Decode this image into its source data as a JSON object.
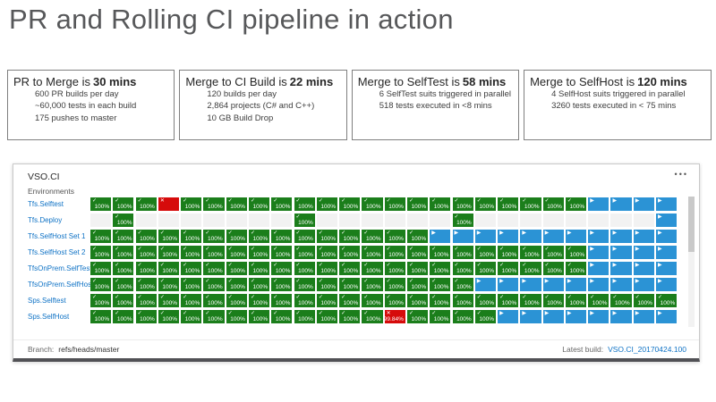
{
  "page": {
    "title": "PR and Rolling CI pipeline in action"
  },
  "stats": [
    {
      "heading_prefix": "PR to Merge is",
      "heading_bold": "30 mins",
      "lines": [
        "600 PR builds per day",
        "~60,000 tests in each build",
        "175 pushes to master"
      ]
    },
    {
      "heading_prefix": "Merge to CI Build is",
      "heading_bold": "22 mins",
      "lines": [
        "120 builds per day",
        "2,864 projects (C# and C++)",
        "10 GB Build Drop"
      ]
    },
    {
      "heading_prefix": "Merge to SelfTest is",
      "heading_bold": "58 mins",
      "lines": [
        "6 SelfTest suits triggered in parallel",
        "518 tests executed in <8 mins"
      ]
    },
    {
      "heading_prefix": "Merge to SelfHost is",
      "heading_bold": "120 mins",
      "lines": [
        "4 SelfHost suits triggered in parallel",
        "3260 tests executed in < 75 mins"
      ]
    }
  ],
  "dashboard": {
    "title": "VSO.CI",
    "menu": "•••",
    "environments_label": "Environments",
    "columns": 26,
    "cell_codes": {
      "g": {
        "state": "success",
        "icon": "check-icon",
        "glyph": "✓",
        "text": "100%"
      },
      "x": {
        "state": "failed",
        "icon": "x-icon",
        "glyph": "✕",
        "text": ""
      },
      "R": {
        "state": "failed",
        "icon": "x-icon",
        "glyph": "✕",
        "text": "99.84%"
      },
      "b": {
        "state": "running",
        "icon": "play-icon",
        "glyph": "▶",
        "text": ""
      },
      "e": {
        "state": "empty",
        "icon": "",
        "glyph": "",
        "text": ""
      }
    },
    "rows": [
      {
        "label": "Tfs.Selftest",
        "cells": "gggxggggggggggggggggggbbbb"
      },
      {
        "label": "Tfs.Deploy",
        "cells": "egeeeeeeegeeeeeegeeeeeeeeb"
      },
      {
        "label": "Tfs.SelfHost Set 1",
        "cells": "gggggggggggggggbbbbbbbbbbb"
      },
      {
        "label": "Tfs.SelfHost Set 2",
        "cells": "ggggggggggggggggggggggbbbb"
      },
      {
        "label": "TfsOnPrem.SelfTest",
        "cells": "ggggggggggggggggggggggbbbb"
      },
      {
        "label": "TfsOnPrem.SelfHost",
        "cells": "gggggggggggggggggbbbbbbbbb"
      },
      {
        "label": "Sps.Selftest",
        "cells": "gggggggggggggggggggggggggg"
      },
      {
        "label": "Sps.SelfHost",
        "cells": "gggggggggggggRggggbbbbbbbb"
      }
    ],
    "footer": {
      "branch_label": "Branch:",
      "branch_value": "refs/heads/master",
      "latest_build_label": "Latest build:",
      "latest_build_value": "VSO.CI_20170424.100"
    },
    "colors": {
      "success": "#1b7e1b",
      "running": "#2b93d5",
      "failed": "#d60b0b",
      "empty": "#f2f2f2",
      "link": "#0e72c5"
    }
  }
}
